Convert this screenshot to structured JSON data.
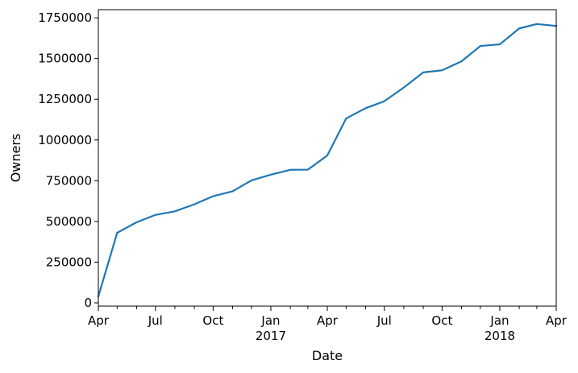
{
  "chart_data": {
    "type": "line",
    "xlabel": "Date",
    "ylabel": "Owners",
    "ylim": [
      -20000,
      1800000
    ],
    "xlim": [
      "2016-04-01",
      "2018-04-01"
    ],
    "grid": false,
    "line_color": "#1f77b4",
    "y_ticks": [
      0,
      250000,
      500000,
      750000,
      1000000,
      1250000,
      1500000,
      1750000
    ],
    "y_tick_labels": [
      "0",
      "250000",
      "500000",
      "750000",
      "1000000",
      "1250000",
      "1500000",
      "1750000"
    ],
    "x_major_ticks": [
      {
        "date": "2016-04-01",
        "label": "Apr",
        "sublabel": ""
      },
      {
        "date": "2016-07-01",
        "label": "Jul",
        "sublabel": ""
      },
      {
        "date": "2016-10-01",
        "label": "Oct",
        "sublabel": ""
      },
      {
        "date": "2017-01-01",
        "label": "Jan",
        "sublabel": "2017"
      },
      {
        "date": "2017-04-01",
        "label": "Apr",
        "sublabel": ""
      },
      {
        "date": "2017-07-01",
        "label": "Jul",
        "sublabel": ""
      },
      {
        "date": "2017-10-01",
        "label": "Oct",
        "sublabel": ""
      },
      {
        "date": "2018-01-01",
        "label": "Jan",
        "sublabel": "2018"
      },
      {
        "date": "2018-04-01",
        "label": "Apr",
        "sublabel": ""
      }
    ],
    "x_minor_ticks": [
      "2016-05-01",
      "2016-06-01",
      "2016-08-01",
      "2016-09-01",
      "2016-11-01",
      "2016-12-01",
      "2017-02-01",
      "2017-03-01",
      "2017-05-01",
      "2017-06-01",
      "2017-08-01",
      "2017-09-01",
      "2017-11-01",
      "2017-12-01",
      "2018-02-01",
      "2018-03-01"
    ],
    "series": [
      {
        "x": [
          "2016-04-01",
          "2016-05-01",
          "2016-06-01",
          "2016-07-01",
          "2016-08-01",
          "2016-09-01",
          "2016-10-01",
          "2016-11-01",
          "2016-12-01",
          "2017-01-01",
          "2017-02-01",
          "2017-03-01",
          "2017-04-01",
          "2017-05-01",
          "2017-06-01",
          "2017-07-01",
          "2017-08-01",
          "2017-09-01",
          "2017-10-01",
          "2017-11-01",
          "2017-12-01",
          "2018-01-01",
          "2018-02-01",
          "2018-03-01",
          "2018-04-01"
        ],
        "values": [
          40000,
          430000,
          495000,
          540000,
          562000,
          605000,
          655000,
          685000,
          752000,
          787000,
          817000,
          818000,
          905000,
          1132000,
          1195000,
          1238000,
          1322000,
          1415000,
          1428000,
          1483000,
          1577000,
          1587000,
          1685000,
          1712000,
          1700000
        ]
      }
    ]
  }
}
